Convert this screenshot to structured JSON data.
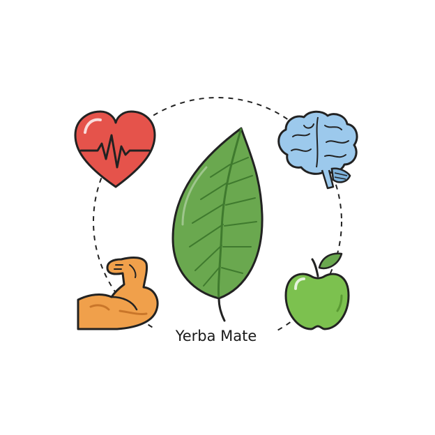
{
  "diagram": {
    "center_label": "Yerba Mate",
    "nodes": [
      {
        "id": "heart",
        "icon": "heart-icon"
      },
      {
        "id": "brain",
        "icon": "brain-icon"
      },
      {
        "id": "muscle",
        "icon": "muscle-arm-icon"
      },
      {
        "id": "apple",
        "icon": "apple-icon"
      }
    ],
    "center_icon": "leaf-icon",
    "colors": {
      "leaf": "#6aa84f",
      "leaf_dark": "#3f7a2e",
      "heart": "#e5534b",
      "brain": "#9cc9ec",
      "arm": "#f0a04b",
      "apple": "#7cc14f",
      "outline": "#222222"
    }
  }
}
